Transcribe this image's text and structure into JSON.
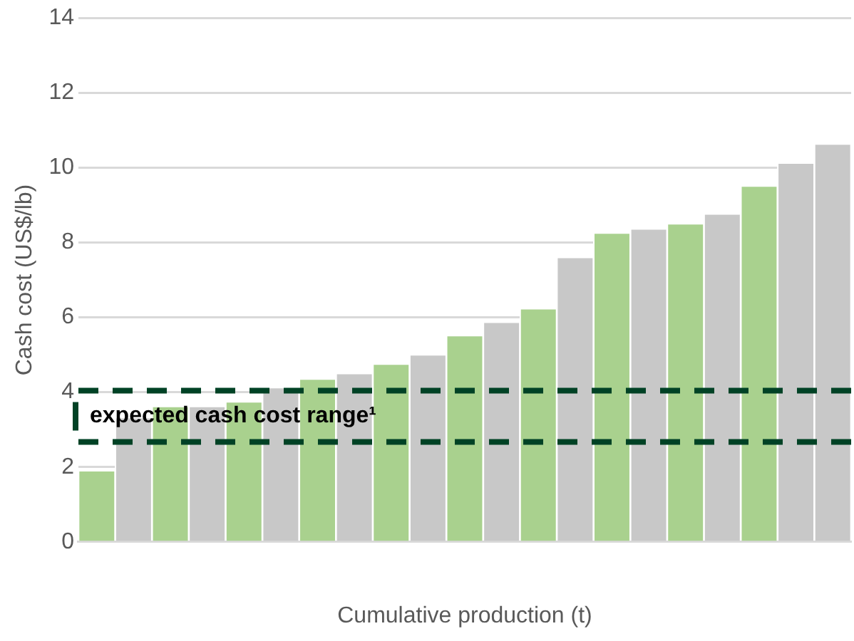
{
  "chart_data": {
    "type": "bar",
    "xlabel": "Cumulative production (t)",
    "ylabel": "Cash cost (US$/lb)",
    "categories": [
      null,
      null,
      null,
      null,
      null,
      null,
      null,
      null,
      null,
      null,
      null,
      null,
      null,
      null,
      null,
      null,
      null,
      null,
      null,
      null,
      null
    ],
    "values": [
      1.88,
      3.3,
      3.6,
      3.6,
      3.72,
      4.1,
      4.33,
      4.48,
      4.73,
      4.98,
      5.49,
      5.85,
      6.21,
      7.58,
      8.23,
      8.34,
      8.48,
      8.74,
      9.49,
      10.1,
      10.61
    ],
    "colors": [
      "#a9d18e",
      "#c8c8c8",
      "#a9d18e",
      "#c8c8c8",
      "#a9d18e",
      "#c8c8c8",
      "#a9d18e",
      "#c8c8c8",
      "#a9d18e",
      "#c8c8c8",
      "#a9d18e",
      "#c8c8c8",
      "#a9d18e",
      "#c8c8c8",
      "#a9d18e",
      "#c8c8c8",
      "#a9d18e",
      "#c8c8c8",
      "#a9d18e",
      "#c8c8c8",
      "#c8c8c8"
    ],
    "ylim": [
      0,
      14
    ],
    "yticks": [
      0,
      2,
      4,
      6,
      8,
      10,
      12,
      14
    ],
    "grid": "y",
    "legend": false,
    "ref_lines": [
      {
        "axis": "y",
        "value": 4.04,
        "color": "#004225",
        "line_style": "dashed"
      },
      {
        "axis": "y",
        "value": 2.67,
        "color": "#004225",
        "line_style": "dashed"
      }
    ],
    "annotations": [
      "expected cash cost range¹"
    ]
  }
}
